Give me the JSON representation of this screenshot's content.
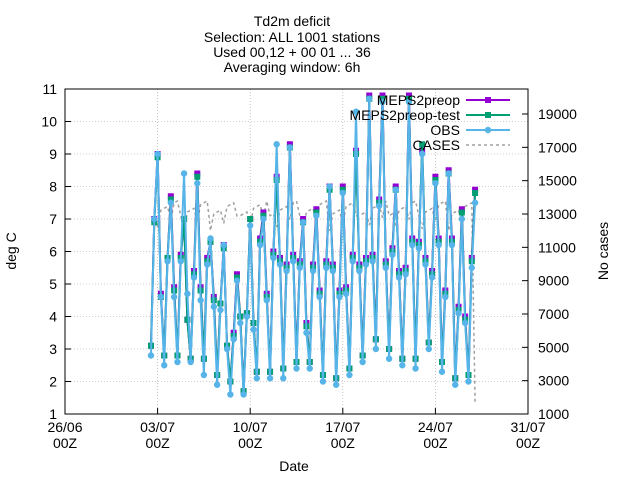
{
  "chart_data": {
    "type": "line",
    "title_lines": [
      "Td2m deficit",
      "Selection: ALL    1001 stations",
      "Used 00,12 + 00 01 ... 36",
      "Averaging window:  6h"
    ],
    "xlabel": "Date",
    "ylabel": "deg C",
    "y2label": "No cases",
    "x_ticks": [
      {
        "day": 0,
        "line1": "26/06",
        "line2": "00Z"
      },
      {
        "day": 7,
        "line1": "03/07",
        "line2": "00Z"
      },
      {
        "day": 14,
        "line1": "10/07",
        "line2": "00Z"
      },
      {
        "day": 21,
        "line1": "17/07",
        "line2": "00Z"
      },
      {
        "day": 28,
        "line1": "24/07",
        "line2": "00Z"
      },
      {
        "day": 35,
        "line1": "31/07",
        "line2": "00Z"
      }
    ],
    "xlim_days": [
      0,
      35
    ],
    "x_origin": "26/06 00Z",
    "ylim": [
      1,
      11
    ],
    "y_ticks": [
      1,
      2,
      3,
      4,
      5,
      6,
      7,
      8,
      9,
      10,
      11
    ],
    "y2lim": [
      1000,
      20500
    ],
    "y2_ticks": [
      1000,
      3000,
      5000,
      7000,
      9000,
      11000,
      13000,
      15000,
      17000,
      19000
    ],
    "grid": true,
    "legend_position": "top-right",
    "legend": [
      {
        "name": "MEPS2preop",
        "color": "#9400d3",
        "marker": "square"
      },
      {
        "name": "MEPS2preop-test",
        "color": "#009e73",
        "marker": "square"
      },
      {
        "name": "OBS",
        "color": "#56b4e9",
        "marker": "circle"
      },
      {
        "name": "CASES",
        "color": "#a0a0a0",
        "marker": "none",
        "dashed": true
      }
    ],
    "series_values": {
      "x_start_day": 6.5,
      "x_step_day": 0.25,
      "MEPS2preop": [
        3.1,
        7.0,
        9.0,
        4.7,
        2.8,
        5.8,
        7.7,
        4.9,
        2.8,
        5.9,
        7.0,
        3.9,
        2.7,
        5.4,
        8.4,
        4.9,
        2.7,
        5.8,
        6.3,
        4.6,
        2.2,
        4.4,
        6.2,
        3.1,
        2.0,
        3.5,
        5.3,
        4.0,
        1.7,
        4.1,
        7.0,
        3.8,
        2.3,
        6.4,
        7.2,
        4.7,
        2.3,
        6.0,
        8.3,
        5.8,
        2.4,
        5.6,
        9.3,
        5.9,
        2.6,
        5.7,
        7.0,
        3.8,
        2.6,
        5.6,
        7.3,
        4.8,
        2.2,
        5.7,
        8.0,
        5.6,
        2.1,
        4.8,
        8.0,
        4.9,
        2.4,
        5.9,
        9.1,
        5.6,
        2.8,
        5.8,
        10.8,
        5.9,
        3.3,
        7.6,
        10.8,
        5.7,
        3.0,
        6.1,
        8.0,
        5.4,
        2.7,
        5.5,
        10.8,
        6.4,
        2.7,
        6.3,
        9.1,
        5.8,
        3.2,
        5.4,
        8.3,
        6.4,
        2.6,
        4.8,
        8.5,
        6.4,
        2.1,
        4.3,
        7.3,
        4.0,
        2.2,
        5.8,
        7.9
      ],
      "MEPS2preop-test": [
        3.1,
        6.9,
        8.9,
        4.6,
        2.8,
        5.8,
        7.6,
        4.8,
        2.8,
        5.8,
        7.0,
        3.9,
        2.7,
        5.3,
        8.3,
        4.8,
        2.7,
        5.7,
        6.3,
        4.5,
        2.2,
        4.4,
        6.1,
        3.1,
        2.0,
        3.4,
        5.2,
        4.0,
        1.7,
        4.1,
        7.0,
        3.8,
        2.3,
        6.3,
        7.1,
        4.6,
        2.3,
        5.9,
        8.2,
        5.7,
        2.4,
        5.5,
        9.2,
        5.8,
        2.6,
        5.6,
        6.9,
        3.7,
        2.6,
        5.5,
        7.2,
        4.7,
        2.2,
        5.6,
        7.9,
        5.5,
        2.1,
        4.7,
        7.9,
        4.8,
        2.4,
        5.8,
        9.0,
        5.5,
        2.8,
        5.7,
        10.7,
        5.8,
        3.3,
        7.5,
        10.7,
        5.6,
        3.0,
        6.0,
        7.9,
        5.3,
        2.7,
        5.4,
        10.7,
        6.3,
        2.7,
        6.2,
        9.3,
        5.7,
        3.2,
        5.3,
        8.2,
        6.3,
        2.6,
        4.7,
        8.4,
        6.3,
        2.1,
        4.2,
        7.2,
        3.9,
        2.2,
        5.7,
        7.8
      ],
      "OBS": [
        2.8,
        7.0,
        9.0,
        4.6,
        2.5,
        5.7,
        7.5,
        4.6,
        2.6,
        5.7,
        8.4,
        4.7,
        2.6,
        5.2,
        8.1,
        4.5,
        2.2,
        5.6,
        6.4,
        4.3,
        1.9,
        4.2,
        6.2,
        3.0,
        1.6,
        3.3,
        5.1,
        3.8,
        1.6,
        4.0,
        6.8,
        3.6,
        2.1,
        6.2,
        7.0,
        4.5,
        2.1,
        5.8,
        9.3,
        5.6,
        2.1,
        5.4,
        9.2,
        5.7,
        2.4,
        5.5,
        6.9,
        3.5,
        2.4,
        5.4,
        7.1,
        4.6,
        2.0,
        5.5,
        8.0,
        5.4,
        1.9,
        4.6,
        7.8,
        4.7,
        2.2,
        5.7,
        10.3,
        5.4,
        2.6,
        5.6,
        10.7,
        5.7,
        3.0,
        7.4,
        10.6,
        5.5,
        2.7,
        5.9,
        7.9,
        5.2,
        2.5,
        5.3,
        10.6,
        6.2,
        2.4,
        6.1,
        9.0,
        5.6,
        3.0,
        5.2,
        8.1,
        6.2,
        2.3,
        4.6,
        8.4,
        6.2,
        1.9,
        4.1,
        7.0,
        3.8,
        2.0,
        5.5,
        7.5
      ]
    }
  }
}
